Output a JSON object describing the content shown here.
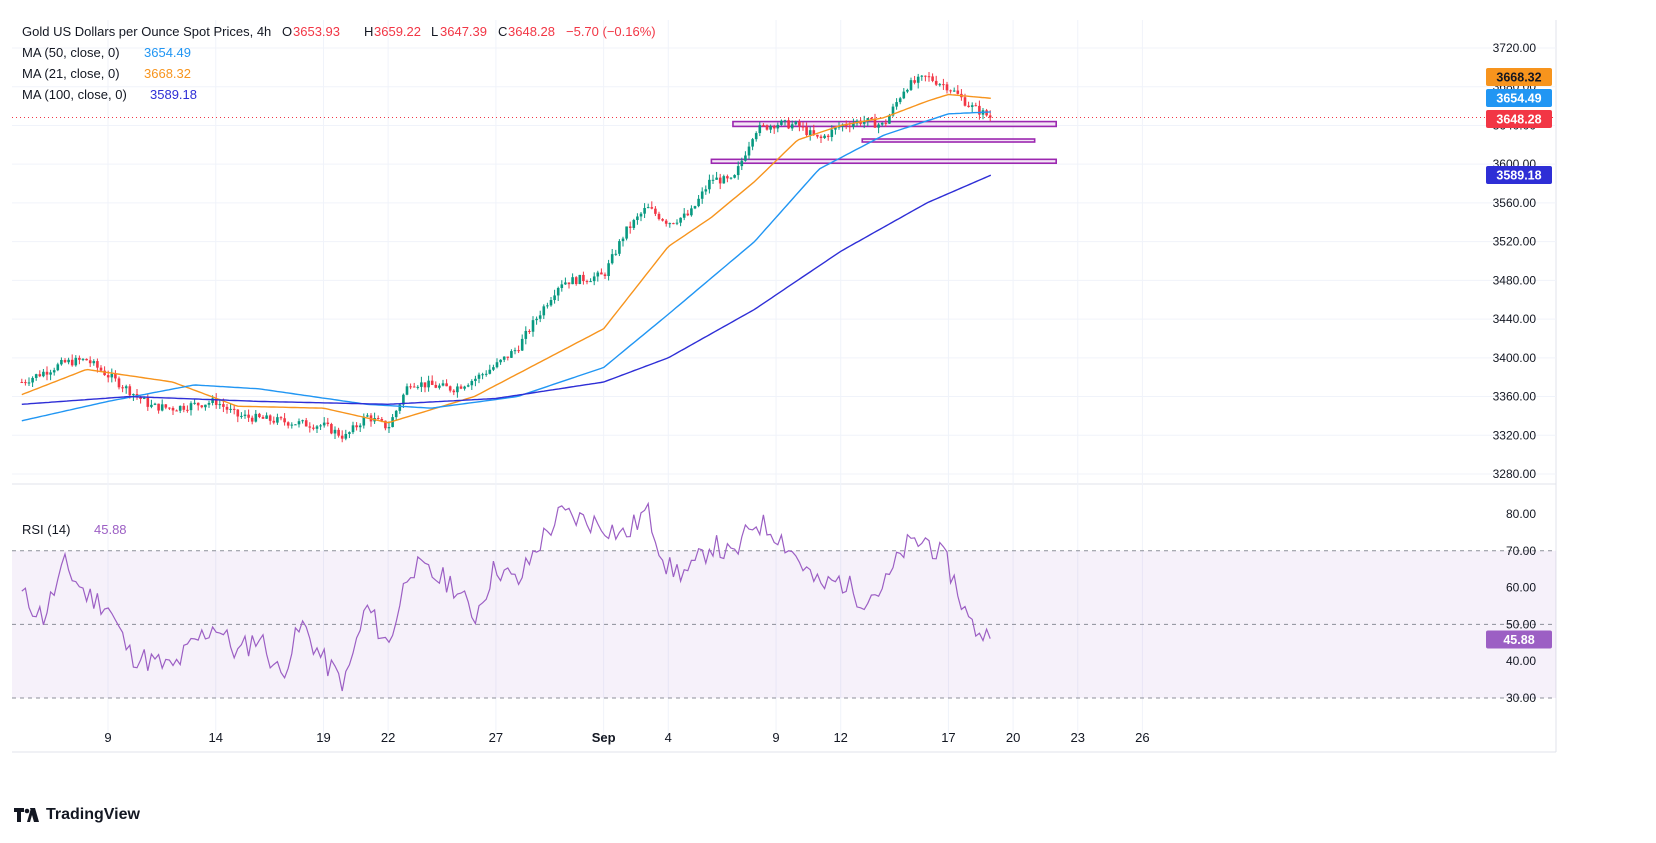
{
  "header": {
    "title": "Gold US Dollars per Ounce Spot Prices, 4h",
    "open_label": "O",
    "open": "3653.93",
    "high_label": "H",
    "high": "3659.22",
    "low_label": "L",
    "low": "3647.39",
    "close_label": "C",
    "close": "3648.28",
    "change": "−5.70 (−0.16%)"
  },
  "indicators": [
    {
      "label": "MA (50, close, 0)",
      "value": "3654.49",
      "color": "#2196f3"
    },
    {
      "label": "MA (21, close, 0)",
      "value": "3668.32",
      "color": "#f7941d"
    },
    {
      "label": "MA (100, close, 0)",
      "value": "3589.18",
      "color": "#2e2ed6"
    }
  ],
  "rsi": {
    "label": "RSI (14)",
    "value": "45.88",
    "color": "#9c5fc4"
  },
  "brand": "TradingView",
  "colors": {
    "up": "#089981",
    "down": "#f23645",
    "support": "#9c27b0",
    "grid": "#f0f3fa"
  },
  "chart_data": [
    {
      "type": "candlestick",
      "title": "Gold US Dollars per Ounce Spot Prices, 4h",
      "ylim": [
        3260,
        3740
      ],
      "y_ticks": [
        3280,
        3320,
        3360,
        3400,
        3440,
        3480,
        3520,
        3560,
        3600,
        3640,
        3680,
        3720
      ],
      "y_tick_labels": [
        "3280.00",
        "3320.00",
        "3360.00",
        "3400.00",
        "3440.00",
        "3480.00",
        "3520.00",
        "3560.00",
        "3600.00",
        "3640.00",
        "3680.00",
        "3720.00"
      ],
      "x_tick_labels": [
        {
          "label": "9",
          "date": "2025-08-09"
        },
        {
          "label": "14",
          "date": "2025-08-14"
        },
        {
          "label": "19",
          "date": "2025-08-19"
        },
        {
          "label": "22",
          "date": "2025-08-22"
        },
        {
          "label": "27",
          "date": "2025-08-27"
        },
        {
          "label": "Sep",
          "date": "2025-09-01"
        },
        {
          "label": "4",
          "date": "2025-09-04"
        },
        {
          "label": "9",
          "date": "2025-09-09"
        },
        {
          "label": "12",
          "date": "2025-09-12"
        },
        {
          "label": "17",
          "date": "2025-09-17"
        },
        {
          "label": "20",
          "date": "2025-09-20"
        },
        {
          "label": "23",
          "date": "2025-09-23"
        },
        {
          "label": "26",
          "date": "2025-09-26"
        }
      ],
      "price_anchors": [
        {
          "date": "2025-08-05",
          "price": 3375
        },
        {
          "date": "2025-08-07",
          "price": 3395
        },
        {
          "date": "2025-08-08",
          "price": 3398
        },
        {
          "date": "2025-08-11",
          "price": 3350
        },
        {
          "date": "2025-08-12",
          "price": 3348
        },
        {
          "date": "2025-08-14",
          "price": 3355
        },
        {
          "date": "2025-08-15",
          "price": 3340
        },
        {
          "date": "2025-08-18",
          "price": 3332
        },
        {
          "date": "2025-08-19",
          "price": 3330
        },
        {
          "date": "2025-08-20",
          "price": 3318
        },
        {
          "date": "2025-08-21",
          "price": 3340
        },
        {
          "date": "2025-08-22",
          "price": 3328
        },
        {
          "date": "2025-08-23",
          "price": 3375
        },
        {
          "date": "2025-08-25",
          "price": 3368
        },
        {
          "date": "2025-08-26",
          "price": 3378
        },
        {
          "date": "2025-08-27",
          "price": 3392
        },
        {
          "date": "2025-08-28",
          "price": 3410
        },
        {
          "date": "2025-08-29",
          "price": 3445
        },
        {
          "date": "2025-08-30",
          "price": 3478
        },
        {
          "date": "2025-09-01",
          "price": 3485
        },
        {
          "date": "2025-09-02",
          "price": 3530
        },
        {
          "date": "2025-09-03",
          "price": 3555
        },
        {
          "date": "2025-09-04",
          "price": 3540
        },
        {
          "date": "2025-09-05",
          "price": 3548
        },
        {
          "date": "2025-09-06",
          "price": 3585
        },
        {
          "date": "2025-09-07",
          "price": 3582
        },
        {
          "date": "2025-09-08",
          "price": 3635
        },
        {
          "date": "2025-09-09",
          "price": 3642
        },
        {
          "date": "2025-09-10",
          "price": 3640
        },
        {
          "date": "2025-09-11",
          "price": 3625
        },
        {
          "date": "2025-09-12",
          "price": 3640
        },
        {
          "date": "2025-09-13",
          "price": 3645
        },
        {
          "date": "2025-09-14",
          "price": 3640
        },
        {
          "date": "2025-09-15",
          "price": 3680
        },
        {
          "date": "2025-09-16",
          "price": 3690
        },
        {
          "date": "2025-09-17",
          "price": 3680
        },
        {
          "date": "2025-09-18",
          "price": 3660
        },
        {
          "date": "2025-09-19",
          "price": 3648
        }
      ],
      "series": [
        {
          "name": "MA (21, close, 0)",
          "color": "#f7941d",
          "points": [
            {
              "date": "2025-08-05",
              "value": 3362
            },
            {
              "date": "2025-08-08",
              "value": 3388
            },
            {
              "date": "2025-08-12",
              "value": 3375
            },
            {
              "date": "2025-08-15",
              "value": 3350
            },
            {
              "date": "2025-08-19",
              "value": 3348
            },
            {
              "date": "2025-08-22",
              "value": 3333
            },
            {
              "date": "2025-08-26",
              "value": 3360
            },
            {
              "date": "2025-08-29",
              "value": 3395
            },
            {
              "date": "2025-09-01",
              "value": 3430
            },
            {
              "date": "2025-09-04",
              "value": 3515
            },
            {
              "date": "2025-09-06",
              "value": 3545
            },
            {
              "date": "2025-09-08",
              "value": 3582
            },
            {
              "date": "2025-09-10",
              "value": 3625
            },
            {
              "date": "2025-09-12",
              "value": 3640
            },
            {
              "date": "2025-09-14",
              "value": 3648
            },
            {
              "date": "2025-09-16",
              "value": 3665
            },
            {
              "date": "2025-09-17",
              "value": 3672
            },
            {
              "date": "2025-09-19",
              "value": 3668
            }
          ]
        },
        {
          "name": "MA (50, close, 0)",
          "color": "#2196f3",
          "points": [
            {
              "date": "2025-08-05",
              "value": 3335
            },
            {
              "date": "2025-08-09",
              "value": 3355
            },
            {
              "date": "2025-08-13",
              "value": 3372
            },
            {
              "date": "2025-08-16",
              "value": 3368
            },
            {
              "date": "2025-08-21",
              "value": 3352
            },
            {
              "date": "2025-08-24",
              "value": 3348
            },
            {
              "date": "2025-08-28",
              "value": 3360
            },
            {
              "date": "2025-09-01",
              "value": 3390
            },
            {
              "date": "2025-09-04",
              "value": 3445
            },
            {
              "date": "2025-09-08",
              "value": 3520
            },
            {
              "date": "2025-09-11",
              "value": 3595
            },
            {
              "date": "2025-09-14",
              "value": 3630
            },
            {
              "date": "2025-09-17",
              "value": 3652
            },
            {
              "date": "2025-09-19",
              "value": 3654
            }
          ]
        },
        {
          "name": "MA (100, close, 0)",
          "color": "#2e2ed6",
          "points": [
            {
              "date": "2025-08-05",
              "value": 3352
            },
            {
              "date": "2025-08-10",
              "value": 3360
            },
            {
              "date": "2025-08-16",
              "value": 3355
            },
            {
              "date": "2025-08-22",
              "value": 3352
            },
            {
              "date": "2025-08-27",
              "value": 3358
            },
            {
              "date": "2025-09-01",
              "value": 3375
            },
            {
              "date": "2025-09-04",
              "value": 3400
            },
            {
              "date": "2025-09-08",
              "value": 3450
            },
            {
              "date": "2025-09-12",
              "value": 3510
            },
            {
              "date": "2025-09-16",
              "value": 3560
            },
            {
              "date": "2025-09-19",
              "value": 3589
            }
          ]
        }
      ],
      "support_zones": [
        {
          "from": "2025-09-07",
          "to": "2025-09-22",
          "y_low": 3639,
          "y_high": 3644
        },
        {
          "from": "2025-09-13",
          "to": "2025-09-21",
          "y_low": 3625,
          "y_high": 3626
        },
        {
          "from": "2025-09-06",
          "to": "2025-09-22",
          "y_low": 3601,
          "y_high": 3605
        }
      ],
      "last_price_line": 3648.28,
      "price_labels": [
        {
          "value": 3668.32,
          "label": "3668.32",
          "color": "#f7941d"
        },
        {
          "value": 3654.49,
          "label": "3654.49",
          "color": "#2196f3"
        },
        {
          "value": 3648.28,
          "label": "3648.28",
          "color": "#f23645"
        },
        {
          "value": 3589.18,
          "label": "3589.18",
          "color": "#2e2ed6"
        }
      ]
    },
    {
      "type": "line",
      "title": "RSI (14)",
      "ylim": [
        25,
        85
      ],
      "y_ticks": [
        30,
        40,
        50,
        60,
        70,
        80
      ],
      "y_tick_labels": [
        "30.00",
        "40.00",
        "50.00",
        "60.00",
        "70.00",
        "80.00"
      ],
      "bands": [
        30,
        50,
        70
      ],
      "series": [
        {
          "name": "RSI (14)",
          "color": "#9c5fc4",
          "points": [
            {
              "date": "2025-08-05",
              "value": 58
            },
            {
              "date": "2025-08-06",
              "value": 52
            },
            {
              "date": "2025-08-07",
              "value": 66
            },
            {
              "date": "2025-08-08",
              "value": 58
            },
            {
              "date": "2025-08-09",
              "value": 55
            },
            {
              "date": "2025-08-10",
              "value": 42
            },
            {
              "date": "2025-08-11",
              "value": 40
            },
            {
              "date": "2025-08-12",
              "value": 38
            },
            {
              "date": "2025-08-13",
              "value": 45
            },
            {
              "date": "2025-08-14",
              "value": 50
            },
            {
              "date": "2025-08-15",
              "value": 42
            },
            {
              "date": "2025-08-16",
              "value": 47
            },
            {
              "date": "2025-08-17",
              "value": 36
            },
            {
              "date": "2025-08-18",
              "value": 50
            },
            {
              "date": "2025-08-19",
              "value": 40
            },
            {
              "date": "2025-08-20",
              "value": 34
            },
            {
              "date": "2025-08-21",
              "value": 55
            },
            {
              "date": "2025-08-22",
              "value": 44
            },
            {
              "date": "2025-08-23",
              "value": 66
            },
            {
              "date": "2025-08-25",
              "value": 61
            },
            {
              "date": "2025-08-26",
              "value": 52
            },
            {
              "date": "2025-08-27",
              "value": 66
            },
            {
              "date": "2025-08-28",
              "value": 61
            },
            {
              "date": "2025-08-29",
              "value": 72
            },
            {
              "date": "2025-08-30",
              "value": 80
            },
            {
              "date": "2025-09-01",
              "value": 77
            },
            {
              "date": "2025-09-02",
              "value": 74
            },
            {
              "date": "2025-09-03",
              "value": 81
            },
            {
              "date": "2025-09-04",
              "value": 65
            },
            {
              "date": "2025-09-05",
              "value": 64
            },
            {
              "date": "2025-09-06",
              "value": 72
            },
            {
              "date": "2025-09-07",
              "value": 68
            },
            {
              "date": "2025-09-08",
              "value": 78
            },
            {
              "date": "2025-09-09",
              "value": 75
            },
            {
              "date": "2025-09-10",
              "value": 68
            },
            {
              "date": "2025-09-11",
              "value": 60
            },
            {
              "date": "2025-09-12",
              "value": 62
            },
            {
              "date": "2025-09-13",
              "value": 57
            },
            {
              "date": "2025-09-14",
              "value": 60
            },
            {
              "date": "2025-09-15",
              "value": 71
            },
            {
              "date": "2025-09-16",
              "value": 73
            },
            {
              "date": "2025-09-17",
              "value": 66
            },
            {
              "date": "2025-09-18",
              "value": 50
            },
            {
              "date": "2025-09-19",
              "value": 45.88
            }
          ]
        }
      ]
    }
  ]
}
